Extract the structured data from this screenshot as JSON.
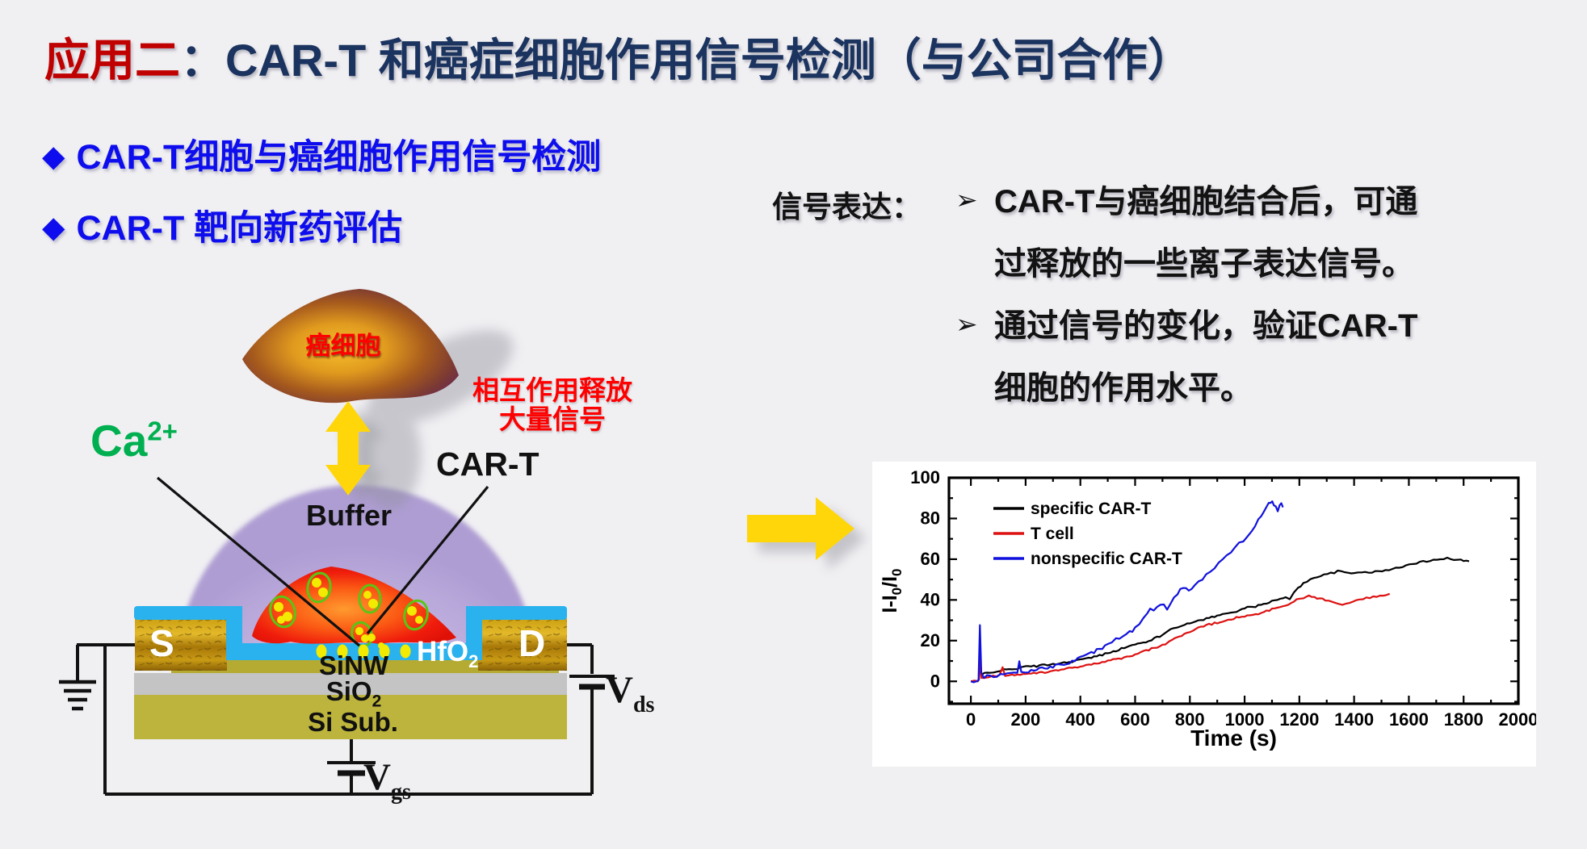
{
  "slide": {
    "title": {
      "highlight": "应用二",
      "rest": "：CAR-T 和癌症细胞作用信号检测（与公司合作）",
      "highlight_color": "#c00000",
      "color": "#1b335f"
    },
    "bullets": [
      {
        "marker": "◆",
        "text": "CAR-T细胞与癌细胞作用信号检测"
      },
      {
        "marker": "◆",
        "text": "CAR-T 靶向新药评估"
      }
    ],
    "bullet_color": "#0d0dee",
    "signal": {
      "label": "信号表达：",
      "items": [
        {
          "marker": "➢",
          "lines": [
            "CAR-T与癌细胞结合后，可通",
            "过释放的一些离子表达信号。"
          ]
        },
        {
          "marker": "➢",
          "lines": [
            "通过信号的变化，验证CAR-T",
            "细胞的作用水平。"
          ]
        }
      ]
    }
  },
  "diagram": {
    "cancer_cell": "癌细胞",
    "ca": {
      "base": "Ca",
      "sup": "2+",
      "color": "#00b050"
    },
    "release": {
      "line1": "相互作用释放",
      "line2": "大量信号",
      "color": "#ff0000"
    },
    "cart": "CAR-T",
    "buffer": "Buffer",
    "source": "S",
    "drain": "D",
    "hfo2": {
      "base": "HfO",
      "sub": "2"
    },
    "sinw": "SiNW",
    "sio2": {
      "base": "SiO",
      "sub": "2"
    },
    "si_sub": "Si Sub.",
    "vds": {
      "base": "V",
      "sub": "ds"
    },
    "vgs": {
      "base": "V",
      "sub": "gs"
    },
    "arrow_color": "#ffd60a"
  },
  "chart_data": {
    "type": "line",
    "title": "",
    "xlabel": "Time (s)",
    "ylabel": "I-I0/I0",
    "ylabel_parts": [
      {
        "t": "I-I"
      },
      {
        "t": "0",
        "sub": true
      },
      {
        "t": "/I"
      },
      {
        "t": "0",
        "sub": true
      }
    ],
    "xlim": [
      -80,
      2000
    ],
    "ylim": [
      -11,
      100
    ],
    "xticks": [
      0,
      200,
      400,
      600,
      800,
      1000,
      1200,
      1400,
      1600,
      1800,
      2000
    ],
    "yticks": [
      0,
      20,
      40,
      60,
      80,
      100
    ],
    "x_minor_step": 100,
    "y_minor_step": 10,
    "grid": false,
    "background": "#ffffff",
    "legend_position": "top-left",
    "series": [
      {
        "name": "specific CAR-T",
        "color": "#000000",
        "noise": 0.45,
        "points": [
          [
            0,
            0
          ],
          [
            25,
            0
          ],
          [
            30,
            1
          ],
          [
            34,
            10
          ],
          [
            39,
            3
          ],
          [
            50,
            4
          ],
          [
            70,
            4.5
          ],
          [
            95,
            5
          ],
          [
            120,
            5.5
          ],
          [
            150,
            6
          ],
          [
            180,
            6.5
          ],
          [
            210,
            7.5
          ],
          [
            240,
            7.5
          ],
          [
            270,
            8
          ],
          [
            300,
            8.5
          ],
          [
            330,
            9
          ],
          [
            360,
            9.5
          ],
          [
            390,
            10.5
          ],
          [
            420,
            11
          ],
          [
            450,
            12
          ],
          [
            480,
            13
          ],
          [
            510,
            14.5
          ],
          [
            540,
            15.5
          ],
          [
            570,
            17
          ],
          [
            600,
            18
          ],
          [
            630,
            19
          ],
          [
            660,
            20.5
          ],
          [
            690,
            22
          ],
          [
            705,
            23
          ],
          [
            720,
            25
          ],
          [
            740,
            26.5
          ],
          [
            760,
            27
          ],
          [
            790,
            28
          ],
          [
            820,
            29.5
          ],
          [
            850,
            30.5
          ],
          [
            880,
            31.5
          ],
          [
            910,
            32.5
          ],
          [
            940,
            33.5
          ],
          [
            970,
            34.5
          ],
          [
            1000,
            36
          ],
          [
            1030,
            36.5
          ],
          [
            1060,
            37.5
          ],
          [
            1090,
            39
          ],
          [
            1120,
            40
          ],
          [
            1150,
            41
          ],
          [
            1165,
            40.5
          ],
          [
            1180,
            44
          ],
          [
            1195,
            46
          ],
          [
            1215,
            48
          ],
          [
            1240,
            50
          ],
          [
            1265,
            51.5
          ],
          [
            1290,
            52.5
          ],
          [
            1315,
            53
          ],
          [
            1340,
            54
          ],
          [
            1365,
            53.5
          ],
          [
            1390,
            53
          ],
          [
            1415,
            53.5
          ],
          [
            1440,
            54
          ],
          [
            1465,
            53.5
          ],
          [
            1490,
            54
          ],
          [
            1515,
            54.5
          ],
          [
            1540,
            55
          ],
          [
            1565,
            56
          ],
          [
            1590,
            57
          ],
          [
            1615,
            57.5
          ],
          [
            1640,
            58.5
          ],
          [
            1665,
            59
          ],
          [
            1690,
            60
          ],
          [
            1715,
            60
          ],
          [
            1740,
            60.5
          ],
          [
            1765,
            60
          ],
          [
            1790,
            60
          ],
          [
            1810,
            59
          ],
          [
            1820,
            59
          ]
        ]
      },
      {
        "name": "T cell",
        "color": "#dd1111",
        "noise": 0.45,
        "points": [
          [
            0,
            0
          ],
          [
            25,
            0
          ],
          [
            30,
            1
          ],
          [
            34,
            11
          ],
          [
            39,
            2
          ],
          [
            55,
            2
          ],
          [
            80,
            2.5
          ],
          [
            105,
            3
          ],
          [
            116,
            7
          ],
          [
            125,
            3
          ],
          [
            150,
            3
          ],
          [
            180,
            3.5
          ],
          [
            210,
            3.5
          ],
          [
            240,
            4
          ],
          [
            270,
            4.5
          ],
          [
            300,
            5
          ],
          [
            330,
            5.5
          ],
          [
            360,
            6.5
          ],
          [
            390,
            7
          ],
          [
            420,
            8
          ],
          [
            450,
            8.5
          ],
          [
            480,
            9.5
          ],
          [
            510,
            10.5
          ],
          [
            540,
            11
          ],
          [
            570,
            12
          ],
          [
            600,
            13
          ],
          [
            630,
            14.5
          ],
          [
            660,
            16
          ],
          [
            690,
            17
          ],
          [
            710,
            18.5
          ],
          [
            725,
            20
          ],
          [
            745,
            21
          ],
          [
            770,
            22.5
          ],
          [
            800,
            24
          ],
          [
            830,
            26
          ],
          [
            860,
            27.5
          ],
          [
            890,
            28.5
          ],
          [
            920,
            29.5
          ],
          [
            950,
            30.5
          ],
          [
            980,
            31.5
          ],
          [
            1010,
            32
          ],
          [
            1040,
            33
          ],
          [
            1070,
            34
          ],
          [
            1100,
            35.5
          ],
          [
            1130,
            36.5
          ],
          [
            1160,
            38
          ],
          [
            1190,
            40
          ],
          [
            1215,
            41
          ],
          [
            1235,
            42
          ],
          [
            1255,
            41.5
          ],
          [
            1275,
            40.5
          ],
          [
            1295,
            40
          ],
          [
            1320,
            39
          ],
          [
            1345,
            38
          ],
          [
            1370,
            38
          ],
          [
            1395,
            39
          ],
          [
            1420,
            40
          ],
          [
            1445,
            41
          ],
          [
            1470,
            41.5
          ],
          [
            1495,
            42
          ],
          [
            1515,
            42.5
          ],
          [
            1530,
            43
          ]
        ]
      },
      {
        "name": "nonspecific CAR-T",
        "color": "#1111dd",
        "noise": 0.8,
        "points": [
          [
            0,
            0
          ],
          [
            22,
            0
          ],
          [
            28,
            0
          ],
          [
            33,
            27
          ],
          [
            38,
            4
          ],
          [
            48,
            2
          ],
          [
            70,
            2.5
          ],
          [
            95,
            3
          ],
          [
            120,
            3.5
          ],
          [
            145,
            4
          ],
          [
            170,
            4.5
          ],
          [
            177,
            10
          ],
          [
            184,
            4.5
          ],
          [
            210,
            5
          ],
          [
            240,
            6
          ],
          [
            270,
            6.5
          ],
          [
            300,
            7.5
          ],
          [
            330,
            8.5
          ],
          [
            360,
            9.5
          ],
          [
            390,
            11
          ],
          [
            420,
            12.5
          ],
          [
            450,
            14.5
          ],
          [
            480,
            16.5
          ],
          [
            500,
            18.5
          ],
          [
            515,
            19.5
          ],
          [
            530,
            20.5
          ],
          [
            555,
            22.5
          ],
          [
            580,
            24
          ],
          [
            600,
            26
          ],
          [
            615,
            28
          ],
          [
            630,
            30.5
          ],
          [
            645,
            33
          ],
          [
            655,
            35
          ],
          [
            668,
            34
          ],
          [
            680,
            36
          ],
          [
            692,
            37
          ],
          [
            705,
            37
          ],
          [
            717,
            36
          ],
          [
            728,
            38
          ],
          [
            742,
            40.5
          ],
          [
            755,
            43
          ],
          [
            765,
            45
          ],
          [
            775,
            46.5
          ],
          [
            786,
            46
          ],
          [
            796,
            44.5
          ],
          [
            806,
            45.5
          ],
          [
            818,
            47
          ],
          [
            832,
            48.5
          ],
          [
            846,
            50
          ],
          [
            860,
            52
          ],
          [
            875,
            53.5
          ],
          [
            890,
            55.5
          ],
          [
            905,
            57.5
          ],
          [
            920,
            60
          ],
          [
            935,
            62
          ],
          [
            950,
            64
          ],
          [
            965,
            66
          ],
          [
            980,
            67.5
          ],
          [
            995,
            69
          ],
          [
            1010,
            71.5
          ],
          [
            1025,
            74
          ],
          [
            1038,
            76.5
          ],
          [
            1050,
            79
          ],
          [
            1060,
            81
          ],
          [
            1070,
            83.5
          ],
          [
            1080,
            85.5
          ],
          [
            1088,
            87
          ],
          [
            1095,
            88
          ],
          [
            1101,
            89
          ],
          [
            1107,
            87
          ],
          [
            1114,
            85.5
          ],
          [
            1121,
            84
          ],
          [
            1128,
            86
          ],
          [
            1134,
            87.5
          ],
          [
            1140,
            85.5
          ]
        ]
      }
    ]
  }
}
